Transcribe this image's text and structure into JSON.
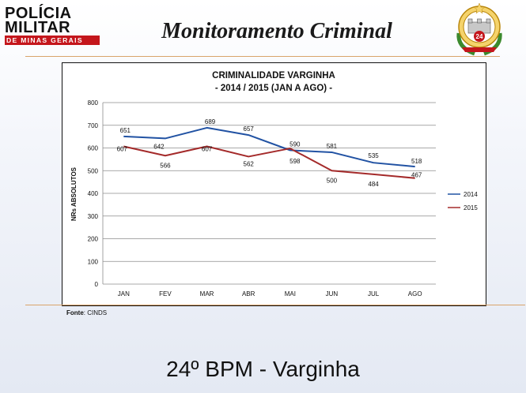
{
  "header": {
    "logo_line1": "POLÍCIA",
    "logo_line2": "MILITAR",
    "logo_line3": "DE MINAS GERAIS",
    "title": "Monitoramento Criminal",
    "crest_text": "POLÍCIA MILITAR DE MINAS",
    "crest_number": "24"
  },
  "colors": {
    "series_2014": "#2152a3",
    "series_2015": "#a42a2a",
    "brand_red": "#c4161c",
    "rule": "#d9a46b"
  },
  "chart_data": {
    "type": "line",
    "title": "CRIMINALIDADE VARGINHA",
    "subtitle": "- 2014 / 2015 (JAN A AGO) -",
    "xlabel": "",
    "ylabel": "NRs ABSOLUTOS",
    "ylim": [
      0,
      800
    ],
    "yticks": [
      0,
      100,
      200,
      300,
      400,
      500,
      600,
      700,
      800
    ],
    "grid": true,
    "legend_position": "right",
    "categories": [
      "JAN",
      "FEV",
      "MAR",
      "ABR",
      "MAI",
      "JUN",
      "JUL",
      "AGO"
    ],
    "series": [
      {
        "name": "2014",
        "values": [
          651,
          642,
          689,
          657,
          590,
          581,
          535,
          518
        ],
        "labels": [
          "651",
          "642",
          "689",
          "657",
          "590",
          "581",
          "535",
          "518"
        ]
      },
      {
        "name": "2015",
        "values": [
          607,
          566,
          607,
          562,
          598,
          500,
          484,
          467
        ],
        "labels": [
          "607",
          "566",
          "607",
          "562",
          "598",
          "500",
          "484",
          "467"
        ]
      }
    ]
  },
  "source": {
    "label": "Fonte",
    "text": ": CINDS"
  },
  "footer": {
    "title": "24º BPM - Varginha"
  }
}
